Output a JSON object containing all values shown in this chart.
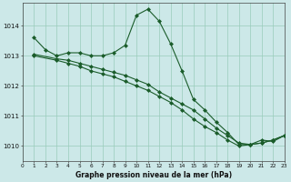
{
  "title": "Graphe pression niveau de la mer (hPa)",
  "x_min": 0,
  "x_max": 23,
  "y_min": 1009.5,
  "y_max": 1014.75,
  "y_ticks": [
    1010,
    1011,
    1012,
    1013,
    1014
  ],
  "x_ticks": [
    0,
    1,
    2,
    3,
    4,
    5,
    6,
    7,
    8,
    9,
    10,
    11,
    12,
    13,
    14,
    15,
    16,
    17,
    18,
    19,
    20,
    21,
    22,
    23
  ],
  "background_color": "#cce8e8",
  "grid_color": "#99ccbb",
  "line_color": "#1a5c2a",
  "series": [
    {
      "x": [
        1,
        2,
        3,
        4,
        5,
        6,
        7,
        8,
        9,
        10,
        11,
        12,
        13,
        14,
        15,
        16,
        17,
        18,
        19,
        20,
        21,
        22,
        23
      ],
      "y": [
        1013.6,
        1013.2,
        1013.0,
        1013.1,
        1013.1,
        1013.0,
        1013.0,
        1013.1,
        1013.35,
        1014.35,
        1014.55,
        1014.15,
        1013.4,
        1012.5,
        1011.55,
        1011.2,
        1010.8,
        1010.45,
        1010.05,
        1010.05,
        1010.2,
        1010.15,
        1010.35
      ]
    },
    {
      "x": [
        1,
        3,
        4,
        5,
        6,
        7,
        8,
        9,
        10,
        11,
        12,
        13,
        14,
        15,
        16,
        17,
        18,
        19,
        20,
        21,
        22,
        23
      ],
      "y": [
        1013.05,
        1012.9,
        1012.85,
        1012.75,
        1012.65,
        1012.55,
        1012.45,
        1012.35,
        1012.2,
        1012.05,
        1011.8,
        1011.6,
        1011.4,
        1011.2,
        1010.9,
        1010.6,
        1010.35,
        1010.1,
        1010.05,
        1010.1,
        1010.2,
        1010.35
      ]
    },
    {
      "x": [
        1,
        3,
        4,
        5,
        6,
        7,
        8,
        9,
        10,
        11,
        12,
        13,
        14,
        15,
        16,
        17,
        18,
        19,
        20,
        21,
        22,
        23
      ],
      "y": [
        1013.0,
        1012.85,
        1012.75,
        1012.65,
        1012.5,
        1012.4,
        1012.3,
        1012.15,
        1012.0,
        1011.85,
        1011.65,
        1011.45,
        1011.2,
        1010.9,
        1010.65,
        1010.45,
        1010.2,
        1010.0,
        1010.05,
        1010.1,
        1010.2,
        1010.35
      ]
    }
  ]
}
